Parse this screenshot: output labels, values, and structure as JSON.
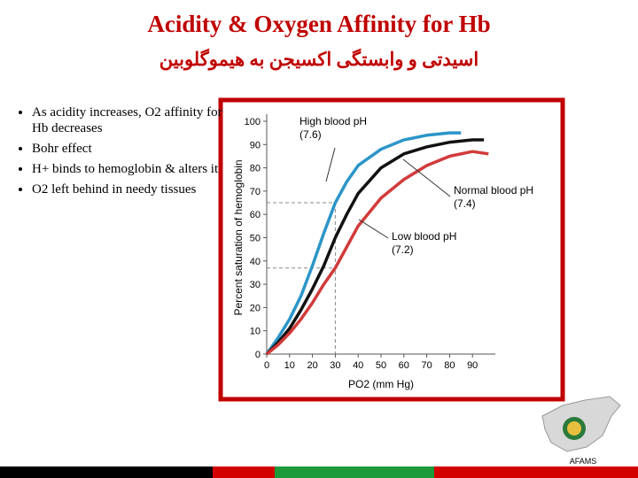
{
  "title": "Acidity & Oxygen Affinity for Hb",
  "subtitle": "اسیدتی و وابستگی اکسیجن به هیموگلوبین",
  "bullets": [
    "As acidity increases, O2 affinity for Hb decreases",
    "Bohr effect",
    "H+ binds to hemoglobin & alters it",
    "O2 left behind in needy tissues"
  ],
  "footer": "AFAMS",
  "chart_data": {
    "type": "line",
    "xlabel": "PO2 (mm Hg)",
    "ylabel": "Percent saturation of hemoglobin",
    "xlim": [
      0,
      100
    ],
    "ylim": [
      0,
      100
    ],
    "xticks": [
      0,
      10,
      20,
      30,
      40,
      50,
      60,
      70,
      80,
      90
    ],
    "yticks": [
      0,
      10,
      20,
      30,
      40,
      50,
      60,
      70,
      80,
      90,
      100
    ],
    "reference": {
      "x": 30,
      "y": [
        65,
        37
      ]
    },
    "series": [
      {
        "name": "High blood pH (7.6)",
        "color": "#2b95c8",
        "x": [
          0,
          5,
          10,
          15,
          20,
          25,
          30,
          35,
          40,
          50,
          60,
          70,
          80,
          85
        ],
        "values": [
          0,
          7,
          15,
          25,
          38,
          52,
          65,
          74,
          81,
          88,
          92,
          94,
          95,
          95
        ]
      },
      {
        "name": "Normal blood pH (7.4)",
        "color": "#111111",
        "x": [
          0,
          5,
          10,
          15,
          20,
          25,
          30,
          35,
          40,
          50,
          60,
          70,
          80,
          90,
          95
        ],
        "values": [
          0,
          5,
          11,
          19,
          28,
          38,
          50,
          60,
          69,
          80,
          86,
          89,
          91,
          92,
          92
        ]
      },
      {
        "name": "Low blood pH (7.2)",
        "color": "#d23a3a",
        "x": [
          0,
          5,
          10,
          15,
          20,
          25,
          30,
          35,
          40,
          50,
          60,
          70,
          80,
          90,
          97
        ],
        "values": [
          0,
          4,
          9,
          15,
          22,
          30,
          37,
          46,
          55,
          67,
          75,
          81,
          85,
          87,
          86
        ]
      }
    ]
  }
}
